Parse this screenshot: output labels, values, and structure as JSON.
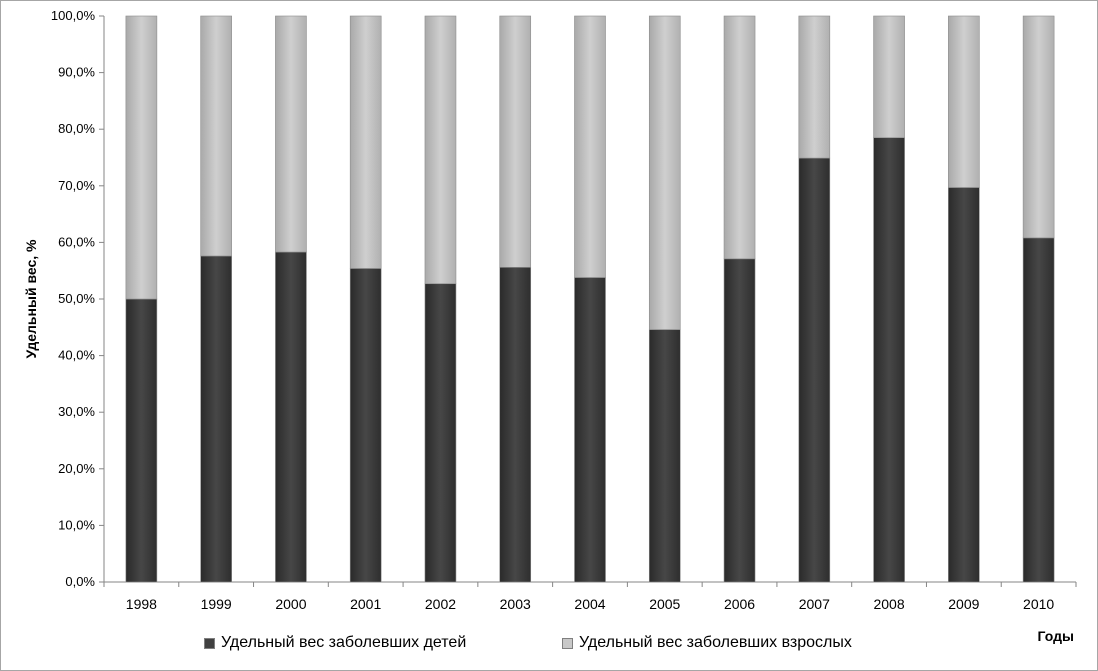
{
  "chart_data": {
    "type": "bar",
    "stacked": true,
    "categories": [
      "1998",
      "1999",
      "2000",
      "2001",
      "2002",
      "2003",
      "2004",
      "2005",
      "2006",
      "2007",
      "2008",
      "2009",
      "2010"
    ],
    "series": [
      {
        "name": "Удельный вес заболевших детей",
        "color": "#404040",
        "values": [
          50.0,
          57.6,
          58.3,
          55.4,
          52.7,
          55.6,
          53.8,
          44.6,
          57.1,
          74.9,
          78.5,
          69.7,
          60.8
        ]
      },
      {
        "name": "Удельный вес заболевших взрослых",
        "color": "#c8c8c8",
        "values": [
          50.0,
          42.4,
          41.7,
          44.6,
          47.3,
          44.4,
          46.2,
          55.4,
          42.9,
          25.1,
          21.5,
          30.3,
          39.2
        ]
      }
    ],
    "y_ticks": [
      "0,0%",
      "10,0%",
      "20,0%",
      "30,0%",
      "40,0%",
      "50,0%",
      "60,0%",
      "70,0%",
      "80,0%",
      "90,0%",
      "100,0%"
    ],
    "ylim": [
      0,
      100
    ],
    "ylabel": "Удельный вес, %",
    "xlabel": "Годы",
    "legend_position": "bottom",
    "grid": false
  }
}
